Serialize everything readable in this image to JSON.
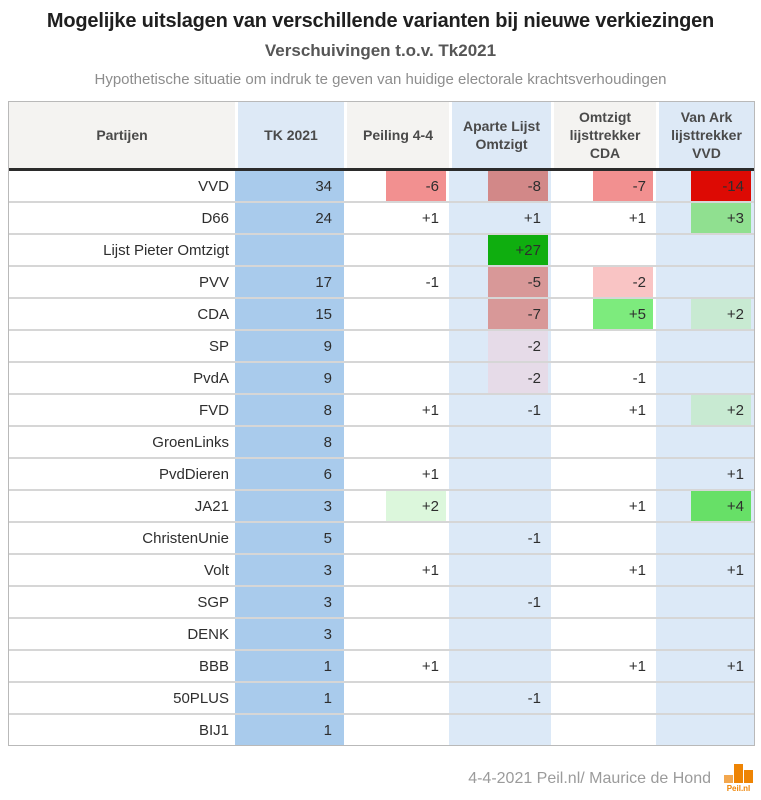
{
  "title": "Mogelijke uitslagen van verschillende varianten bij nieuwe verkiezingen",
  "subtitle": "Verschuivingen t.o.v. Tk2021",
  "note": "Hypothetische situatie om indruk te geven van huidige electorale krachtsverhoudingen",
  "footer": {
    "credit": "4-4-2021 Peil.nl/ Maurice de Hond",
    "logo_text": "Peil.nl"
  },
  "colors": {
    "tk_column_bg": "#a9cbec",
    "variant_blue_bg": "#dce9f7",
    "header_blue": "#dde9f6",
    "header_gray": "#f4f3f1",
    "thick_border": "#2b2b2b",
    "row_border": "#d6d6d6",
    "outer_border": "#b9b9b9",
    "accent_orange": "#ee8404",
    "accent_orange_light": "#f3a74e"
  },
  "chart_data": {
    "type": "table",
    "title": "Mogelijke uitslagen van verschillende varianten bij nieuwe verkiezingen",
    "subtitle": "Verschuivingen t.o.v. Tk2021",
    "columns": [
      {
        "key": "party",
        "label": "Partijen",
        "header_bg": "#f4f3f1",
        "col_bg": "#ffffff"
      },
      {
        "key": "tk2021",
        "label": "TK 2021",
        "header_bg": "#dde9f6",
        "col_bg": "#a9cbec"
      },
      {
        "key": "peiling",
        "label": "Peiling 4-4",
        "header_bg": "#f4f3f1",
        "col_bg": "#ffffff"
      },
      {
        "key": "aparte",
        "label": "Aparte Lijst Omtzigt",
        "header_bg": "#dde9f6",
        "col_bg": "#dce9f7"
      },
      {
        "key": "omtzigt_cda",
        "label": "Omtzigt lijsttrekker CDA",
        "header_bg": "#f4f3f1",
        "col_bg": "#ffffff"
      },
      {
        "key": "van_ark",
        "label": "Van Ark lijsttrekker VVD",
        "header_bg": "#dde9f6",
        "col_bg": "#dce9f7"
      }
    ],
    "rows": [
      {
        "party": "VVD",
        "tk2021": "34",
        "peiling": {
          "v": "-6",
          "bg": "#f29090"
        },
        "aparte": {
          "v": "-8",
          "bg": "#d28888"
        },
        "omtzigt_cda": {
          "v": "-7",
          "bg": "#f29090"
        },
        "van_ark": {
          "v": "-14",
          "bg": "#dd0a04"
        }
      },
      {
        "party": "D66",
        "tk2021": "24",
        "peiling": {
          "v": "+1"
        },
        "aparte": {
          "v": "+1"
        },
        "omtzigt_cda": {
          "v": "+1"
        },
        "van_ark": {
          "v": "+3",
          "bg": "#90e090"
        }
      },
      {
        "party": "Lijst Pieter Omtzigt",
        "tk2021": "",
        "peiling": null,
        "aparte": {
          "v": "+27",
          "bg": "#0fae0f"
        },
        "omtzigt_cda": null,
        "van_ark": null
      },
      {
        "party": "PVV",
        "tk2021": "17",
        "peiling": {
          "v": "-1"
        },
        "aparte": {
          "v": "-5",
          "bg": "#d89898"
        },
        "omtzigt_cda": {
          "v": "-2",
          "bg": "#f9c4c4"
        },
        "van_ark": null
      },
      {
        "party": "CDA",
        "tk2021": "15",
        "peiling": null,
        "aparte": {
          "v": "-7",
          "bg": "#d89898"
        },
        "omtzigt_cda": {
          "v": "+5",
          "bg": "#7deb7d"
        },
        "van_ark": {
          "v": "+2",
          "bg": "#c8ead2"
        }
      },
      {
        "party": "SP",
        "tk2021": "9",
        "peiling": null,
        "aparte": {
          "v": "-2",
          "bg": "#e6dbe8"
        },
        "omtzigt_cda": null,
        "van_ark": null
      },
      {
        "party": "PvdA",
        "tk2021": "9",
        "peiling": null,
        "aparte": {
          "v": "-2",
          "bg": "#e6dbe8"
        },
        "omtzigt_cda": {
          "v": "-1"
        },
        "van_ark": null
      },
      {
        "party": "FVD",
        "tk2021": "8",
        "peiling": {
          "v": "+1"
        },
        "aparte": {
          "v": "-1"
        },
        "omtzigt_cda": {
          "v": "+1"
        },
        "van_ark": {
          "v": "+2",
          "bg": "#c8ead2"
        }
      },
      {
        "party": "GroenLinks",
        "tk2021": "8",
        "peiling": null,
        "aparte": null,
        "omtzigt_cda": null,
        "van_ark": null
      },
      {
        "party": "PvdDieren",
        "tk2021": "6",
        "peiling": {
          "v": "+1"
        },
        "aparte": null,
        "omtzigt_cda": null,
        "van_ark": {
          "v": "+1"
        }
      },
      {
        "party": "JA21",
        "tk2021": "3",
        "peiling": {
          "v": "+2",
          "bg": "#dcf7dc"
        },
        "aparte": null,
        "omtzigt_cda": {
          "v": "+1"
        },
        "van_ark": {
          "v": "+4",
          "bg": "#67e067"
        }
      },
      {
        "party": "ChristenUnie",
        "tk2021": "5",
        "peiling": null,
        "aparte": {
          "v": "-1"
        },
        "omtzigt_cda": null,
        "van_ark": null
      },
      {
        "party": "Volt",
        "tk2021": "3",
        "peiling": {
          "v": "+1"
        },
        "aparte": null,
        "omtzigt_cda": {
          "v": "+1"
        },
        "van_ark": {
          "v": "+1"
        }
      },
      {
        "party": "SGP",
        "tk2021": "3",
        "peiling": null,
        "aparte": {
          "v": "-1"
        },
        "omtzigt_cda": null,
        "van_ark": null
      },
      {
        "party": "DENK",
        "tk2021": "3",
        "peiling": null,
        "aparte": null,
        "omtzigt_cda": null,
        "van_ark": null
      },
      {
        "party": "BBB",
        "tk2021": "1",
        "peiling": {
          "v": "+1"
        },
        "aparte": null,
        "omtzigt_cda": {
          "v": "+1"
        },
        "van_ark": {
          "v": "+1"
        }
      },
      {
        "party": "50PLUS",
        "tk2021": "1",
        "peiling": null,
        "aparte": {
          "v": "-1"
        },
        "omtzigt_cda": null,
        "van_ark": null
      },
      {
        "party": "BIJ1",
        "tk2021": "1",
        "peiling": null,
        "aparte": null,
        "omtzigt_cda": null,
        "van_ark": null
      }
    ]
  }
}
